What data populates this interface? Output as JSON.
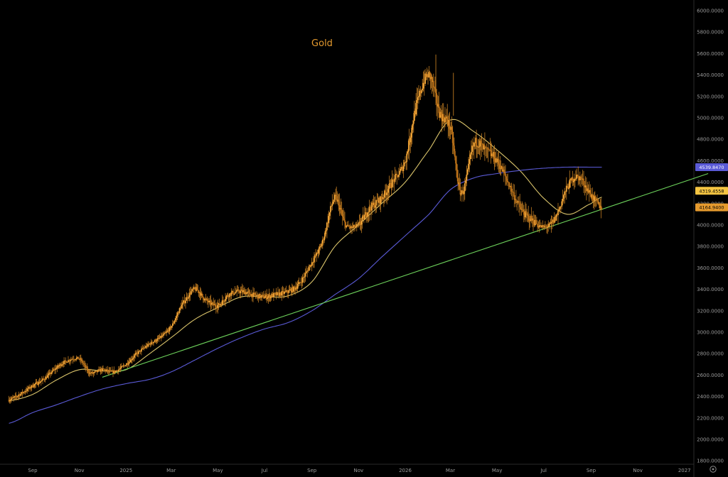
{
  "chart_data": {
    "type": "line",
    "title": "Gold",
    "xlabel": "",
    "ylabel": "",
    "ylim": [
      1800,
      6000
    ],
    "y_ticks": [
      "6000.0000",
      "5800.0000",
      "5600.0000",
      "5400.0000",
      "5200.0000",
      "5000.0000",
      "4800.0000",
      "4600.0000",
      "4400.0000",
      "4200.0000",
      "4000.0000",
      "3800.0000",
      "3600.0000",
      "3400.0000",
      "3200.0000",
      "3000.0000",
      "2800.0000",
      "2600.0000",
      "2400.0000",
      "2200.0000",
      "2000.0000",
      "1800.0000"
    ],
    "y_tick_values": [
      6000,
      5800,
      5600,
      5400,
      5200,
      5000,
      4800,
      4600,
      4400,
      4200,
      4000,
      3800,
      3600,
      3400,
      3200,
      3000,
      2800,
      2600,
      2400,
      2200,
      2000,
      1800
    ],
    "x_ticks": [
      {
        "label": "Sep",
        "x": "2024-09"
      },
      {
        "label": "Nov",
        "x": "2024-11"
      },
      {
        "label": "2025",
        "x": "2025-01"
      },
      {
        "label": "Mar",
        "x": "2025-03"
      },
      {
        "label": "May",
        "x": "2025-05"
      },
      {
        "label": "Jul",
        "x": "2025-07"
      },
      {
        "label": "Sep",
        "x": "2025-09"
      },
      {
        "label": "Nov",
        "x": "2025-11"
      },
      {
        "label": "2026",
        "x": "2026-01"
      },
      {
        "label": "Mar",
        "x": "2026-03"
      },
      {
        "label": "May",
        "x": "2026-05"
      },
      {
        "label": "Jul",
        "x": "2026-07"
      },
      {
        "label": "Sep",
        "x": "2026-09"
      },
      {
        "label": "Nov",
        "x": "2026-11"
      },
      {
        "label": "2027",
        "x": "2027-01"
      }
    ],
    "series": [
      {
        "name": "",
        "kind": "candles",
        "color": "#e59a2e",
        "x": [
          "2024-08",
          "2024-08-15",
          "2024-09",
          "2024-09-15",
          "2024-10",
          "2024-10-15",
          "2024-11",
          "2024-11-15",
          "2024-12",
          "2024-12-15",
          "2025-01",
          "2025-01-15",
          "2025-02",
          "2025-02-15",
          "2025-03",
          "2025-03-15",
          "2025-04",
          "2025-04-15",
          "2025-05",
          "2025-05-15",
          "2025-06",
          "2025-06-15",
          "2025-07",
          "2025-07-15",
          "2025-08",
          "2025-08-15",
          "2025-09",
          "2025-09-15",
          "2025-10",
          "2025-10-15",
          "2025-11",
          "2025-11-15",
          "2025-12",
          "2025-12-15",
          "2026-01",
          "2026-01-15",
          "2026-02",
          "2026-02-15",
          "2026-03",
          "2026-03-15",
          "2026-04",
          "2026-04-15",
          "2026-05",
          "2026-05-15",
          "2026-06",
          "2026-06-15",
          "2026-07",
          "2026-07-15",
          "2026-08",
          "2026-08-15",
          "2026-09",
          "2026-09-15"
        ],
        "values": [
          2370,
          2420,
          2500,
          2560,
          2660,
          2730,
          2750,
          2620,
          2650,
          2630,
          2700,
          2800,
          2890,
          2950,
          3050,
          3250,
          3400,
          3300,
          3250,
          3350,
          3380,
          3350,
          3330,
          3350,
          3380,
          3450,
          3650,
          3850,
          4250,
          4000,
          4000,
          4150,
          4250,
          4400,
          4600,
          5100,
          5400,
          5050,
          4900,
          4300,
          4750,
          4700,
          4600,
          4400,
          4150,
          4050,
          3980,
          4050,
          4350,
          4450,
          4280,
          4165
        ]
      },
      {
        "name": "",
        "kind": "moving-average",
        "color": "#d9c36a",
        "x": [
          "2024-08",
          "2024-09",
          "2024-10",
          "2024-11",
          "2024-12",
          "2025-01",
          "2025-02",
          "2025-03",
          "2025-04",
          "2025-05",
          "2025-06",
          "2025-07",
          "2025-08",
          "2025-09",
          "2025-10",
          "2025-11",
          "2025-12",
          "2026-01",
          "2026-02",
          "2026-03",
          "2026-04",
          "2026-05",
          "2026-06",
          "2026-07",
          "2026-08",
          "2026-09",
          "2026-09-15"
        ],
        "values": [
          2360,
          2420,
          2550,
          2650,
          2640,
          2650,
          2800,
          2950,
          3120,
          3230,
          3330,
          3330,
          3340,
          3470,
          3800,
          4000,
          4200,
          4400,
          4700,
          4980,
          4870,
          4700,
          4500,
          4250,
          4100,
          4200,
          4260
        ]
      },
      {
        "name": "",
        "kind": "moving-average",
        "color": "#5a5ad6",
        "x": [
          "2024-08",
          "2024-09",
          "2024-10",
          "2024-11",
          "2024-12",
          "2025-01",
          "2025-02",
          "2025-03",
          "2025-04",
          "2025-05",
          "2025-06",
          "2025-07",
          "2025-08",
          "2025-09",
          "2025-10",
          "2025-11",
          "2025-12",
          "2026-01",
          "2026-02",
          "2026-03",
          "2026-04",
          "2026-05",
          "2026-06",
          "2026-07",
          "2026-08",
          "2026-09",
          "2026-09-15"
        ],
        "values": [
          2150,
          2250,
          2320,
          2400,
          2470,
          2520,
          2560,
          2630,
          2740,
          2850,
          2950,
          3030,
          3090,
          3200,
          3350,
          3500,
          3700,
          3900,
          4100,
          4330,
          4440,
          4480,
          4510,
          4530,
          4540,
          4540,
          4540
        ]
      },
      {
        "name": "",
        "kind": "trendline",
        "color": "#6cd05a",
        "x": [
          "2024-12",
          "2027-02"
        ],
        "values": [
          2580,
          4480
        ]
      }
    ],
    "price_labels": [
      {
        "text": "4539.8470",
        "value": 4539.847,
        "color": "#5a5ad6"
      },
      {
        "text": "4319.4558",
        "value": 4319.4558,
        "color": "#f5c542"
      },
      {
        "text": "4164.9400",
        "value": 4164.94,
        "color": "#e59a2e"
      }
    ],
    "grid": false,
    "legend": "none",
    "background": "#000000"
  },
  "ui": {
    "settings_icon": "gear-icon"
  }
}
